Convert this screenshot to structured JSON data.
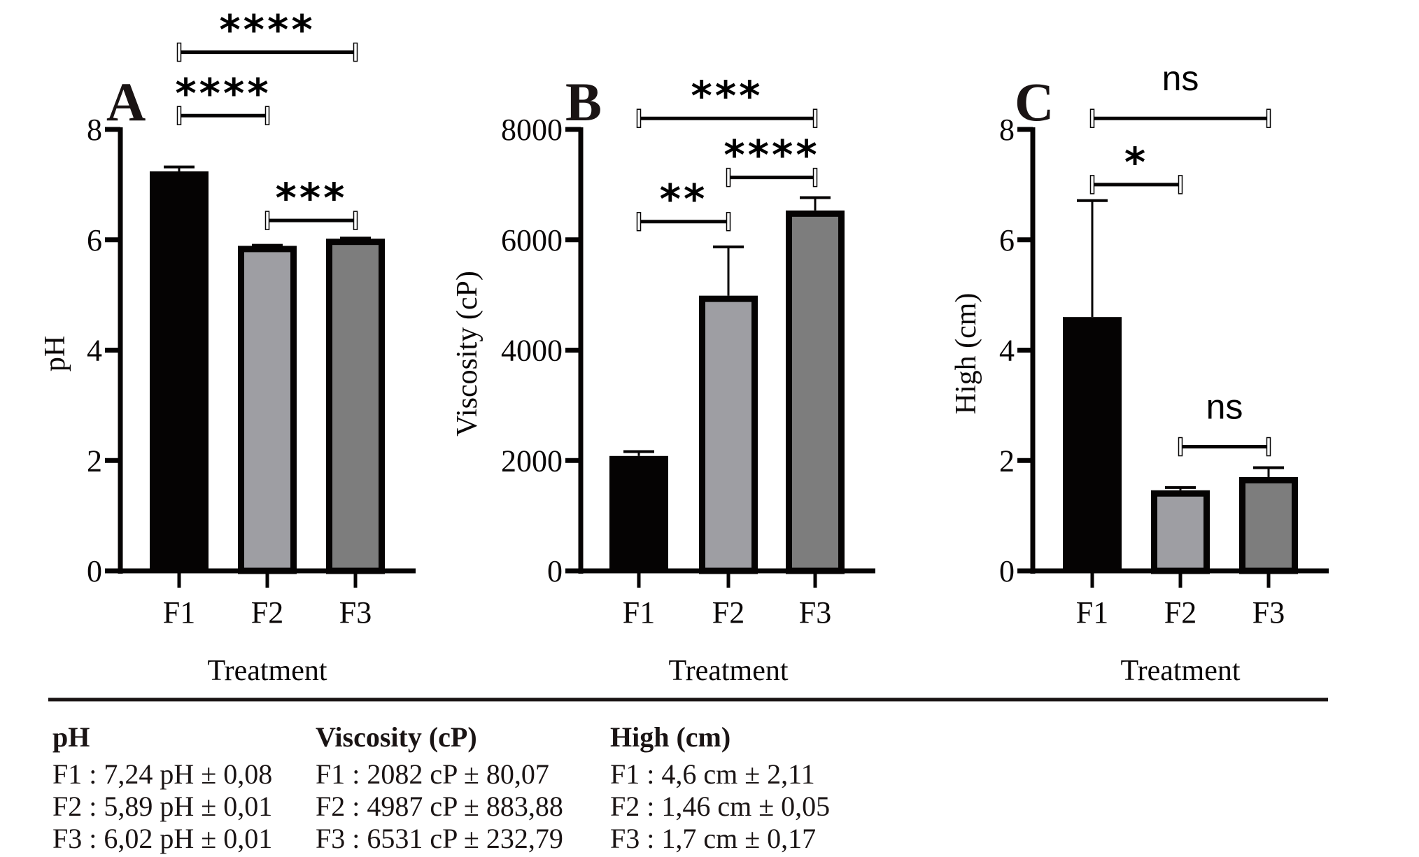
{
  "chart_data": [
    {
      "type": "bar",
      "panel": "A",
      "title": "",
      "xlabel": "Treatment",
      "ylabel": "pH",
      "categories": [
        "F1",
        "F2",
        "F3"
      ],
      "values": [
        7.24,
        5.89,
        6.02
      ],
      "errors": [
        0.08,
        0.01,
        0.01
      ],
      "ylim": [
        0,
        8
      ],
      "yticks": [
        0,
        2,
        4,
        6,
        8
      ],
      "ytick_labels": [
        "0",
        "2",
        "4",
        "6",
        "8"
      ],
      "colors": [
        "#050303",
        "#9e9ea3",
        "#7d7d7d"
      ],
      "grid": false,
      "significance": [
        {
          "from": "F1",
          "to": "F2",
          "label": "****",
          "level": 8.25
        },
        {
          "from": "F2",
          "to": "F3",
          "label": "***",
          "level": 6.35
        },
        {
          "from": "F1",
          "to": "F3",
          "label": "****",
          "level": 9.4
        }
      ]
    },
    {
      "type": "bar",
      "panel": "B",
      "title": "",
      "xlabel": "Treatment",
      "ylabel": "Viscosity (cP)",
      "categories": [
        "F1",
        "F2",
        "F3"
      ],
      "values": [
        2082,
        4987,
        6531
      ],
      "errors": [
        80.07,
        883.88,
        232.79
      ],
      "ylim": [
        0,
        8000
      ],
      "yticks": [
        0,
        2000,
        4000,
        6000,
        8000
      ],
      "ytick_labels": [
        "0",
        "2000",
        "4000",
        "6000",
        "8000"
      ],
      "colors": [
        "#050303",
        "#9e9ea3",
        "#7d7d7d"
      ],
      "grid": false,
      "significance": [
        {
          "from": "F1",
          "to": "F2",
          "label": "**",
          "level": 6330
        },
        {
          "from": "F2",
          "to": "F3",
          "label": "****",
          "level": 7130
        },
        {
          "from": "F1",
          "to": "F3",
          "label": "***",
          "level": 8200
        }
      ]
    },
    {
      "type": "bar",
      "panel": "C",
      "title": "",
      "xlabel": "Treatment",
      "ylabel": "High (cm)",
      "categories": [
        "F1",
        "F2",
        "F3"
      ],
      "values": [
        4.6,
        1.46,
        1.7
      ],
      "errors": [
        2.11,
        0.05,
        0.17
      ],
      "ylim": [
        0,
        8
      ],
      "yticks": [
        0,
        2,
        4,
        6,
        8
      ],
      "ytick_labels": [
        "0",
        "2",
        "4",
        "6",
        "8"
      ],
      "colors": [
        "#050303",
        "#9e9ea3",
        "#7d7d7d"
      ],
      "grid": false,
      "significance": [
        {
          "from": "F1",
          "to": "F2",
          "label": "*",
          "level": 7.0
        },
        {
          "from": "F2",
          "to": "F3",
          "label": "ns",
          "level": 2.25
        },
        {
          "from": "F1",
          "to": "F3",
          "label": "ns",
          "level": 8.2
        }
      ]
    }
  ],
  "summary": {
    "columns": [
      {
        "title": "pH",
        "rows": [
          "F1 : 7,24 pH ± 0,08",
          "F2 : 5,89 pH ± 0,01",
          "F3 : 6,02 pH ± 0,01"
        ]
      },
      {
        "title": "Viscosity (cP)",
        "rows": [
          "F1 : 2082 cP ± 80,07",
          "F2 : 4987 cP ± 883,88",
          "F3 : 6531 cP ± 232,79"
        ]
      },
      {
        "title": "High (cm)",
        "rows": [
          "F1 : 4,6 cm ± 2,11",
          "F2 : 1,46 cm ± 0,05",
          "F3 : 1,7 cm ± 0,17"
        ]
      }
    ]
  }
}
